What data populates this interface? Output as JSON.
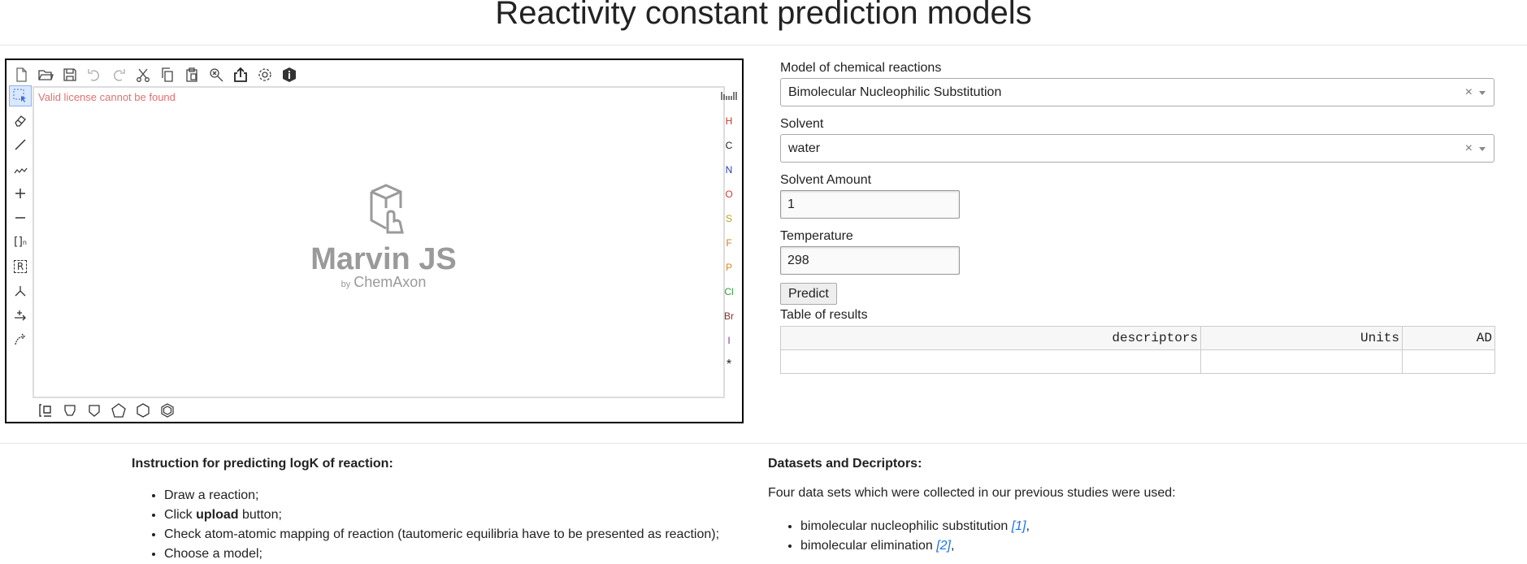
{
  "page": {
    "title": "Reactivity constant prediction models"
  },
  "sketcher": {
    "license_message": "Valid license cannot be found",
    "logo_name": "Marvin JS",
    "logo_by": "by",
    "logo_company": "ChemAxon",
    "top_toolbar": [
      "new-document-icon",
      "open-folder-icon",
      "save-icon",
      "undo-icon",
      "redo-icon",
      "cut-icon",
      "copy-icon",
      "paste-icon",
      "zoom-icon",
      "export-icon",
      "settings-icon",
      "info-icon"
    ],
    "left_toolbar": [
      "rectangle-select-icon",
      "eraser-icon",
      "single-bond-icon",
      "chain-icon",
      "charge-plus-icon",
      "charge-minus-icon",
      "bracket-icon",
      "rgroup-icon",
      "attachment-icon",
      "reaction-arrow-icon",
      "mapping-arrow-icon"
    ],
    "bracket_label": "[]",
    "rgroup_label": "R",
    "elements": [
      "H",
      "C",
      "N",
      "O",
      "S",
      "F",
      "P",
      "Cl",
      "Br",
      "I",
      "*"
    ],
    "element_colors": [
      "#c0392b",
      "#222222",
      "#2c3e9f",
      "#d63a2e",
      "#b5a21a",
      "#c98613",
      "#d9861a",
      "#2e9c3a",
      "#8a2e1e",
      "#8e2bb5",
      "#222222"
    ],
    "bottom_toolbar": [
      "template-library-icon",
      "benzene-icon",
      "cyclopropane-icon",
      "cyclopentane-icon",
      "cyclohexane-icon",
      "benzene-ring-icon"
    ]
  },
  "form": {
    "model_label": "Model of chemical reactions",
    "model_value": "Bimolecular Nucleophilic Substitution",
    "solvent_label": "Solvent",
    "solvent_value": "water",
    "clear_symbol": "×",
    "amount_label": "Solvent Amount",
    "amount_value": "1",
    "temperature_label": "Temperature",
    "temperature_value": "298",
    "predict_label": "Predict",
    "table_caption": "Table of results",
    "columns": [
      "descriptors",
      "Units",
      "AD"
    ]
  },
  "instructions": {
    "heading": "Instruction for predicting logK of reaction:",
    "steps": [
      {
        "text": "Draw a reaction;"
      },
      {
        "pre": "Click ",
        "bold": "upload",
        "post": " button;"
      },
      {
        "text": "Check atom-atomic mapping of reaction (tautomeric equilibria have to be presented as reaction);"
      },
      {
        "text": "Choose a model;"
      }
    ]
  },
  "datasets": {
    "heading": "Datasets and Decriptors:",
    "intro": "Four data sets which were collected in our previous studies were used:",
    "items": [
      {
        "text": "bimolecular nucleophilic substitution ",
        "ref": "[1]",
        "post": ","
      },
      {
        "text": "bimolecular elimination ",
        "ref": "[2]",
        "post": ","
      }
    ]
  }
}
